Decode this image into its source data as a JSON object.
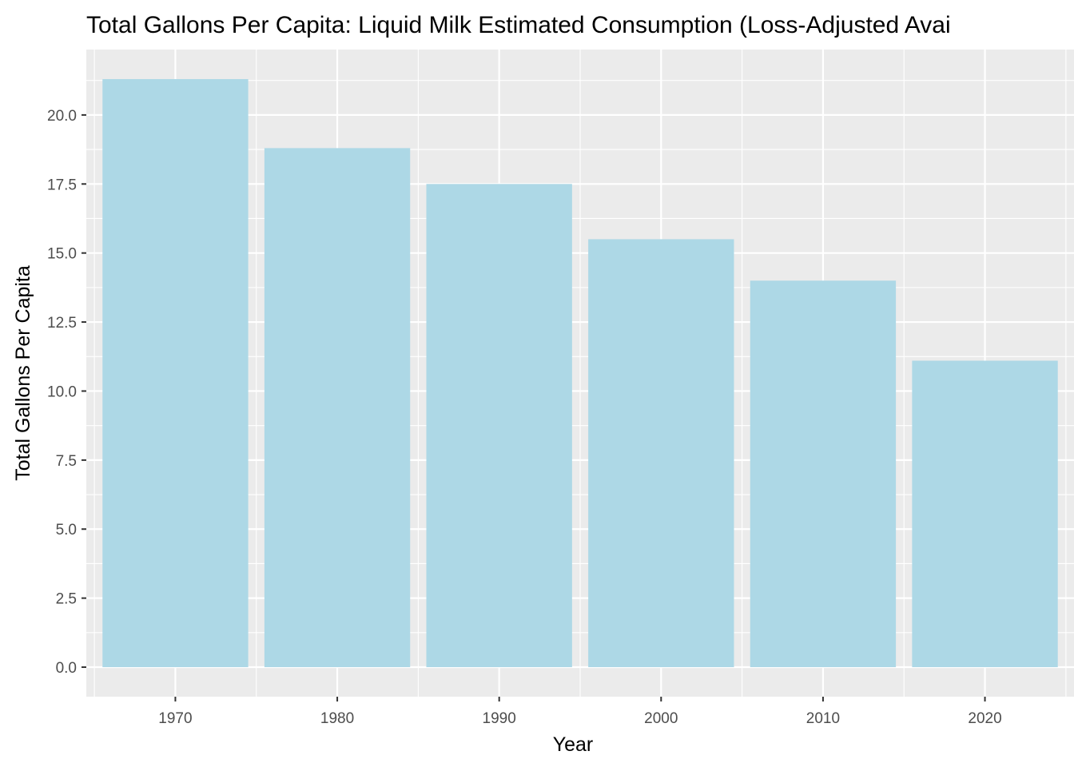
{
  "chart_data": {
    "type": "bar",
    "title": "Total Gallons Per Capita: Liquid Milk Estimated Consumption (Loss-Adjusted Avai",
    "xlabel": "Year",
    "ylabel": "Total Gallons Per Capita",
    "categories": [
      "1970",
      "1980",
      "1990",
      "2000",
      "2010",
      "2020"
    ],
    "x": [
      1970,
      1980,
      1990,
      2000,
      2010,
      2020
    ],
    "values": [
      21.3,
      18.8,
      17.5,
      15.5,
      14.0,
      11.1
    ],
    "ylim": [
      -1.07,
      22.37
    ],
    "xlim": [
      1964.5,
      2025.5
    ],
    "yticks": [
      "0.0",
      "2.5",
      "5.0",
      "7.5",
      "10.0",
      "12.5",
      "15.0",
      "17.5",
      "20.0"
    ],
    "grid": true,
    "bar_color": "#ADD8E6",
    "panel_background": "#EBEBEB",
    "grid_color": "#FFFFFF"
  }
}
